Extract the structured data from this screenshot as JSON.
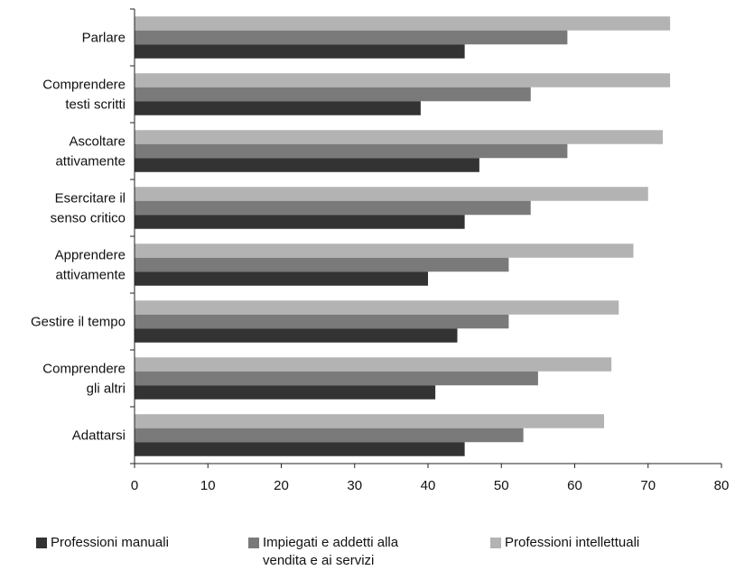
{
  "chart_data": {
    "type": "bar",
    "orientation": "horizontal",
    "categories": [
      [
        "Parlare"
      ],
      [
        "Comprendere",
        "testi scritti"
      ],
      [
        "Ascoltare",
        "attivamente"
      ],
      [
        "Esercitare il",
        "senso critico"
      ],
      [
        "Apprendere",
        "attivamente"
      ],
      [
        "Gestire il tempo"
      ],
      [
        "Comprendere",
        "gli altri"
      ],
      [
        "Adattarsi"
      ]
    ],
    "series": [
      {
        "name": "Professioni manuali",
        "color": "#333333",
        "values": [
          45,
          39,
          47,
          45,
          40,
          44,
          41,
          45
        ]
      },
      {
        "name": "Impiegati e addetti alla vendita e ai servizi",
        "color": "#7a7a7a",
        "values": [
          59,
          54,
          59,
          54,
          51,
          51,
          55,
          53
        ]
      },
      {
        "name": "Professioni intellettuali",
        "color": "#b3b3b3",
        "values": [
          73,
          73,
          72,
          70,
          68,
          66,
          65,
          64
        ]
      }
    ],
    "xlim": [
      0,
      80
    ],
    "xticks": [
      0,
      10,
      20,
      30,
      40,
      50,
      60,
      70,
      80
    ],
    "grid": false,
    "legend_position": "bottom"
  },
  "legend": [
    {
      "lines": [
        "Professioni manuali"
      ],
      "color": "#333333"
    },
    {
      "lines": [
        "Impiegati e addetti alla",
        "vendita e ai servizi"
      ],
      "color": "#7a7a7a"
    },
    {
      "lines": [
        "Professioni intellettuali"
      ],
      "color": "#b3b3b3"
    }
  ]
}
